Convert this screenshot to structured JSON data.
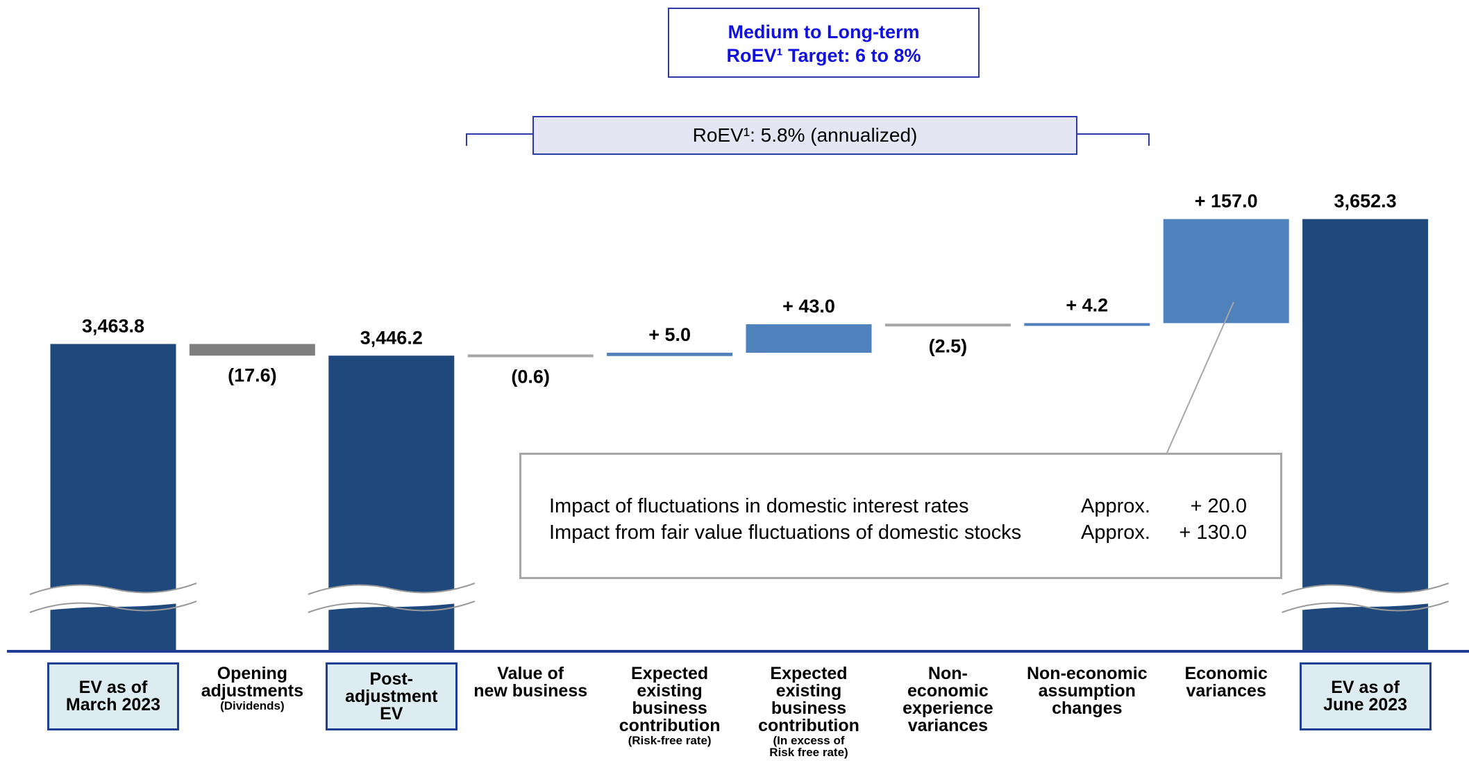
{
  "chart_data": {
    "type": "waterfall",
    "target_lines": [
      "Medium to Long-term",
      "RoEV¹ Target: 6 to 8%"
    ],
    "roev_label": "RoEV¹: 5.8% (annualized)",
    "categories": [
      "EV as of\nMarch 2023",
      "Opening\nadjustments",
      "Post-\nadjustment\nEV",
      "Value of\nnew business",
      "Expected\nexisting\nbusiness\ncontribution",
      "Expected\nexisting\nbusiness\ncontribution",
      "Non-\neconomic\nexperience\nvariances",
      "Non-economic\nassumption\nchanges",
      "Economic\nvariances",
      "EV as of\nJune 2023"
    ],
    "notes": [
      null,
      "(Dividends)",
      null,
      null,
      "(Risk-free rate)",
      "(In excess of\nRisk free rate)",
      null,
      null,
      null,
      null
    ],
    "measure": [
      "total",
      "relative",
      "total",
      "relative",
      "relative",
      "relative",
      "relative",
      "relative",
      "relative",
      "total"
    ],
    "values": [
      3463.8,
      -17.6,
      3446.2,
      -0.6,
      5.0,
      43.0,
      -2.5,
      4.2,
      157.0,
      3652.3
    ],
    "value_labels": [
      "3,463.8",
      "(17.6)",
      "3,446.2",
      "(0.6)",
      "+ 5.0",
      "+ 43.0",
      "(2.5)",
      "+ 4.2",
      "+ 157.0",
      "3,652.3"
    ],
    "colors": [
      "#1f497d",
      "#7f7f7f",
      "#1f497d",
      "#a6a6a6",
      "#4f81bd",
      "#4f81bd",
      "#a6a6a6",
      "#4f81bd",
      "#4f81bd",
      "#1f497d"
    ],
    "ylim": [
      3000,
      3700
    ],
    "callout": [
      [
        "Impact of fluctuations in domestic interest rates",
        "Approx.",
        "+ 20.0"
      ],
      [
        "Impact from fair value fluctuations of domestic stocks",
        "Approx.",
        "+ 130.0"
      ]
    ]
  }
}
